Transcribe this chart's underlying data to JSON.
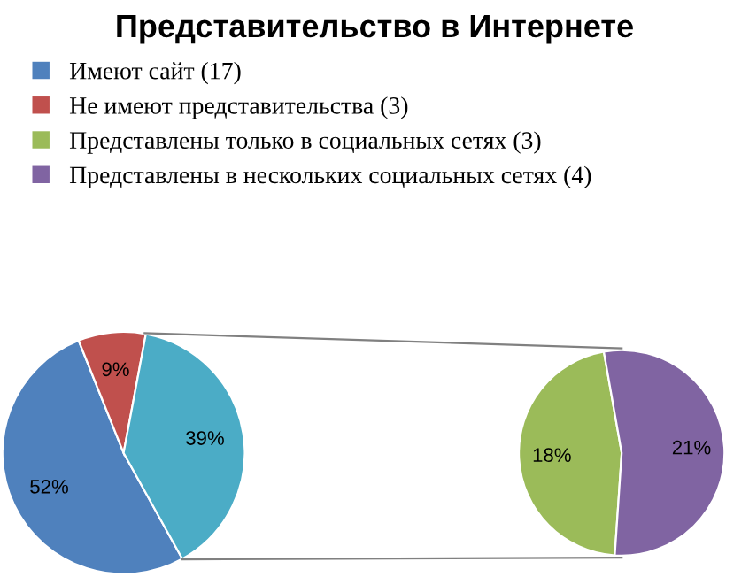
{
  "chart_data": [
    {
      "type": "pie",
      "title": "Представительство в Интернете",
      "categories": [
        "Имеют сайт (17)",
        "Не имеют представительства (3)",
        null
      ],
      "values": [
        52,
        9,
        39
      ],
      "colors": [
        "#4f81bd",
        "#c0504d",
        "#4bacc6"
      ],
      "value_labels": [
        "52%",
        "9%",
        "39%"
      ],
      "legend": "top"
    },
    {
      "type": "pie",
      "categories": [
        "Представлены только в социальных сетях (3)",
        "Представлены в нескольких социальных сетях (4)"
      ],
      "values": [
        18,
        21
      ],
      "colors": [
        "#9bbb59",
        "#8064a2"
      ],
      "value_labels": [
        "18%",
        "21%"
      ],
      "legend": "top"
    }
  ]
}
